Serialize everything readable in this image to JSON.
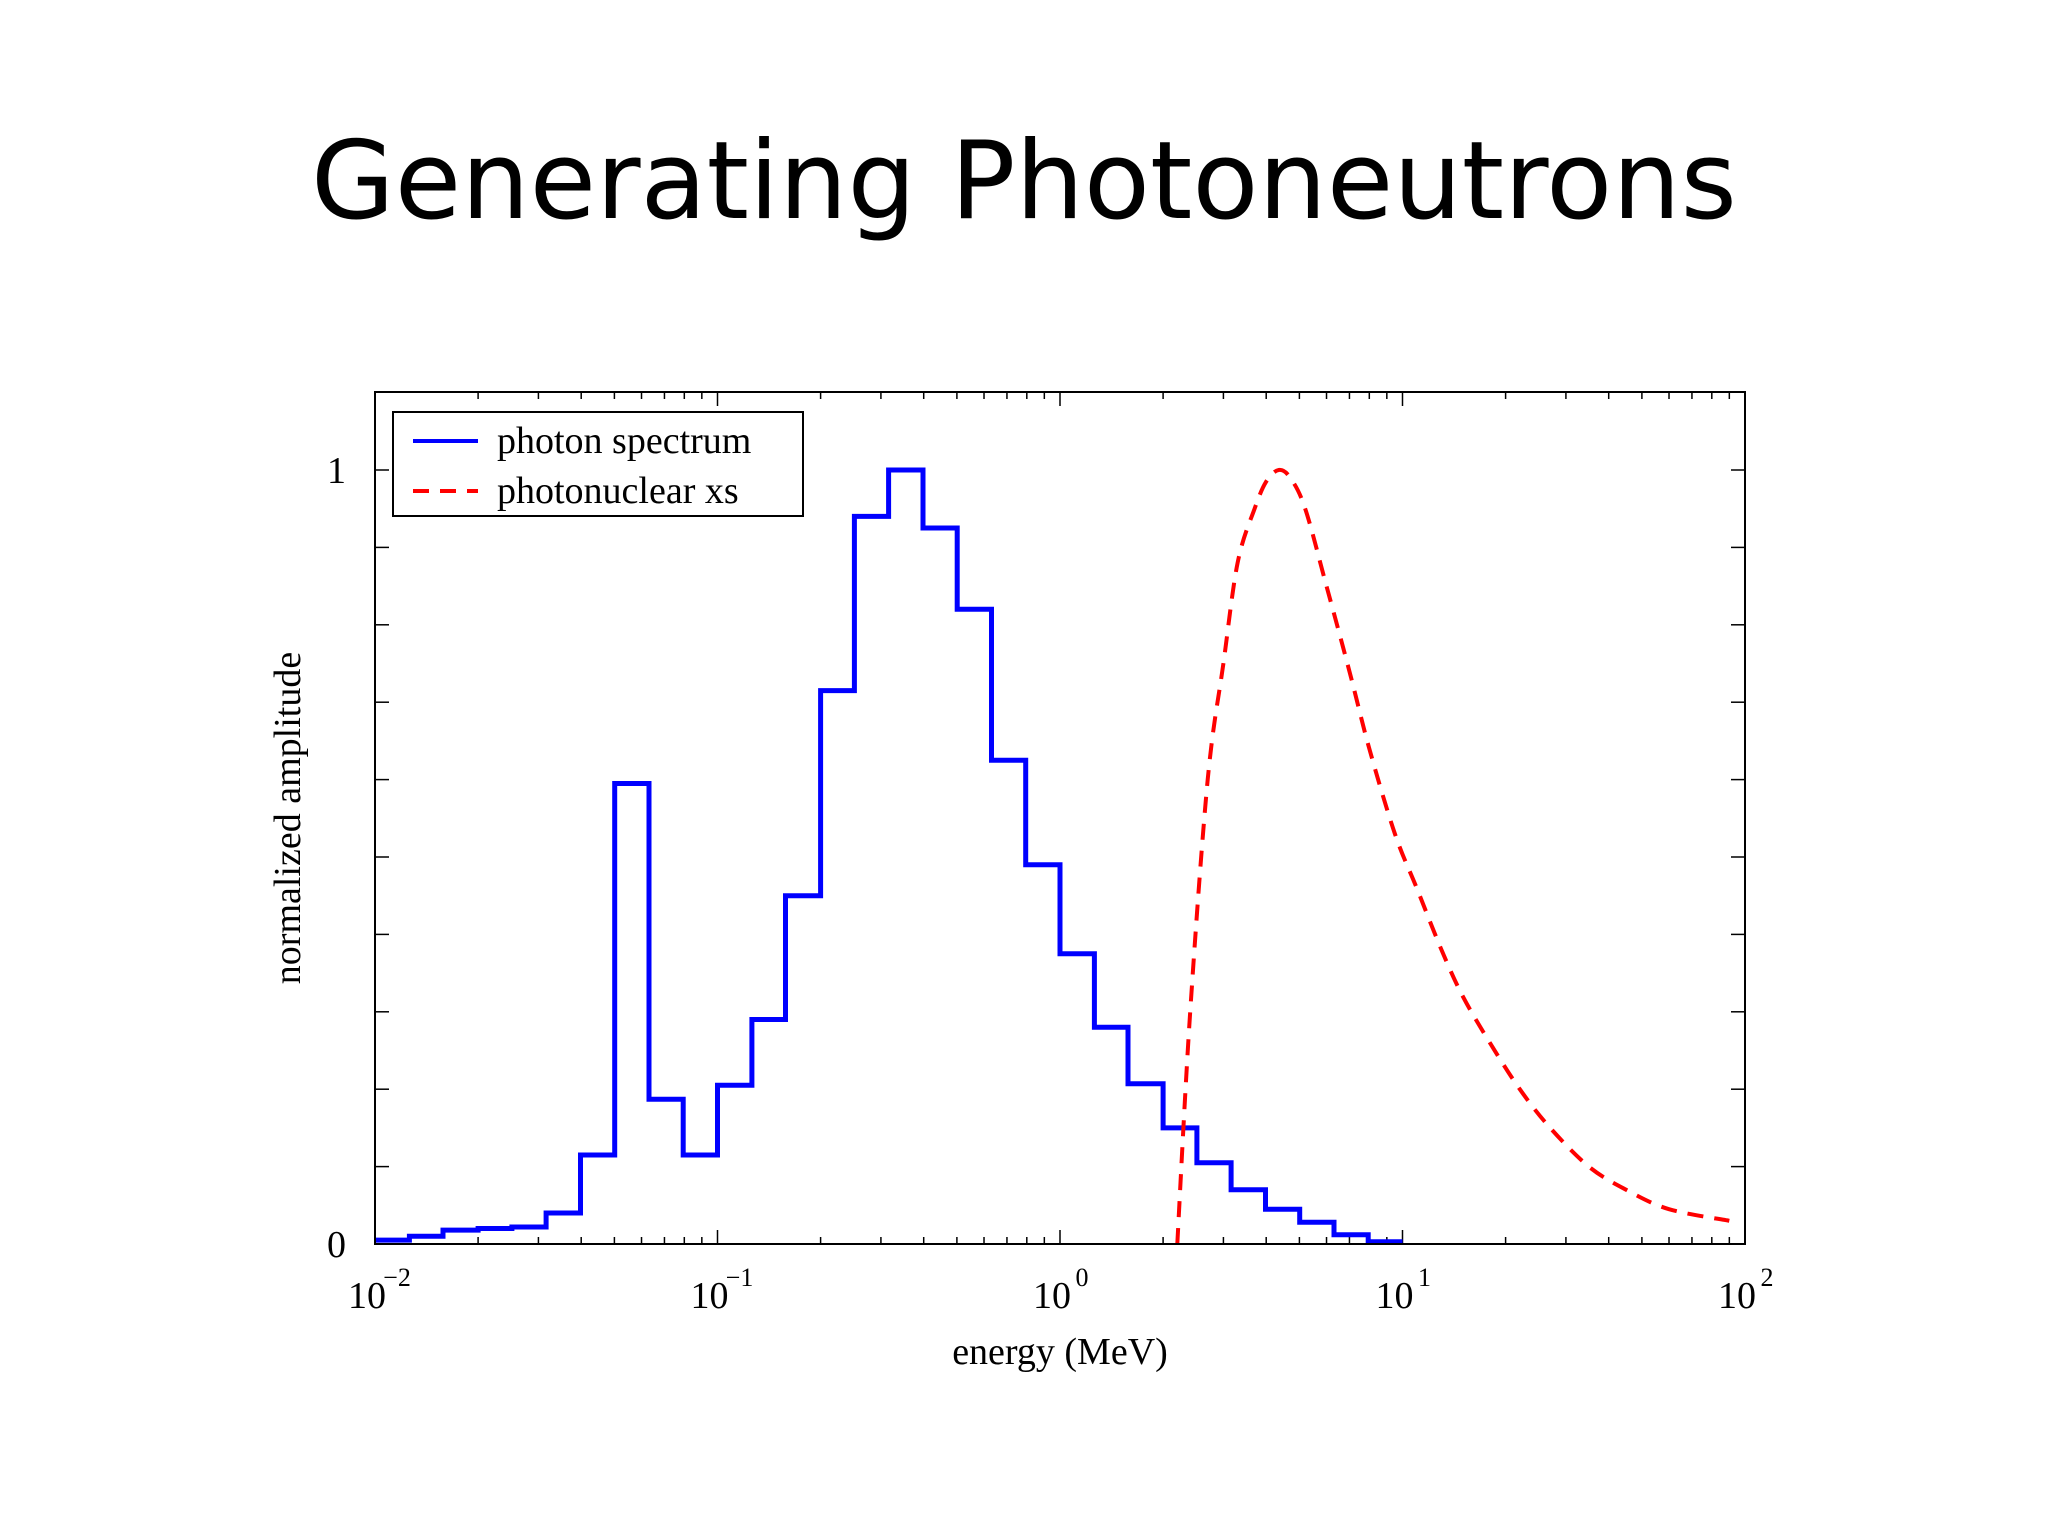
{
  "slide": {
    "title": "Generating Photoneutrons"
  },
  "chart_data": {
    "type": "line",
    "xlabel": "energy (MeV)",
    "ylabel": "normalized amplitude",
    "xscale": "log",
    "xlim": [
      0.01,
      100
    ],
    "ylim": [
      0,
      1.1
    ],
    "x_ticks": [
      {
        "base": "10",
        "exp": "−2",
        "value": 0.01
      },
      {
        "base": "10",
        "exp": "−1",
        "value": 0.1
      },
      {
        "base": "10",
        "exp": "0",
        "value": 1
      },
      {
        "base": "10",
        "exp": "1",
        "value": 10
      },
      {
        "base": "10",
        "exp": "2",
        "value": 100
      }
    ],
    "y_tick_labels": [
      {
        "label": "0",
        "value": 0
      },
      {
        "label": "1",
        "value": 1
      }
    ],
    "y_minor_ticks": [
      0.1,
      0.2,
      0.3,
      0.4,
      0.5,
      0.6,
      0.7,
      0.8,
      0.9
    ],
    "legend_position": "top-left",
    "grid": false,
    "series": [
      {
        "name": "photon spectrum",
        "style": "solid-step",
        "color": "#0000ff",
        "bin_edges": [
          0.01,
          0.0126,
          0.0158,
          0.02,
          0.0251,
          0.0316,
          0.0398,
          0.0501,
          0.0631,
          0.0794,
          0.1,
          0.126,
          0.158,
          0.2,
          0.251,
          0.316,
          0.398,
          0.501,
          0.631,
          0.794,
          1.0,
          1.26,
          1.58,
          2.0,
          2.51,
          3.16,
          3.98,
          5.01,
          6.31,
          7.94,
          10.0
        ],
        "values": [
          0.005,
          0.01,
          0.018,
          0.02,
          0.022,
          0.04,
          0.115,
          0.595,
          0.187,
          0.115,
          0.205,
          0.29,
          0.45,
          0.715,
          0.94,
          1.0,
          0.925,
          0.82,
          0.625,
          0.49,
          0.375,
          0.28,
          0.207,
          0.15,
          0.105,
          0.07,
          0.045,
          0.028,
          0.012,
          0.003
        ]
      },
      {
        "name": "photonuclear xs",
        "style": "dashed",
        "color": "#ff0000",
        "x": [
          2.2,
          2.4,
          2.7,
          3.0,
          3.3,
          3.7,
          4.0,
          4.35,
          4.7,
          5.2,
          6.0,
          7.0,
          8.0,
          9.5,
          11.0,
          13.0,
          15.0,
          18.0,
          22.0,
          27.0,
          35.0,
          45.0,
          60.0,
          90.0
        ],
        "y": [
          0.0,
          0.3,
          0.6,
          0.75,
          0.88,
          0.95,
          0.985,
          1.0,
          0.99,
          0.95,
          0.85,
          0.74,
          0.64,
          0.53,
          0.46,
          0.38,
          0.32,
          0.26,
          0.2,
          0.15,
          0.1,
          0.07,
          0.045,
          0.03
        ]
      }
    ]
  }
}
